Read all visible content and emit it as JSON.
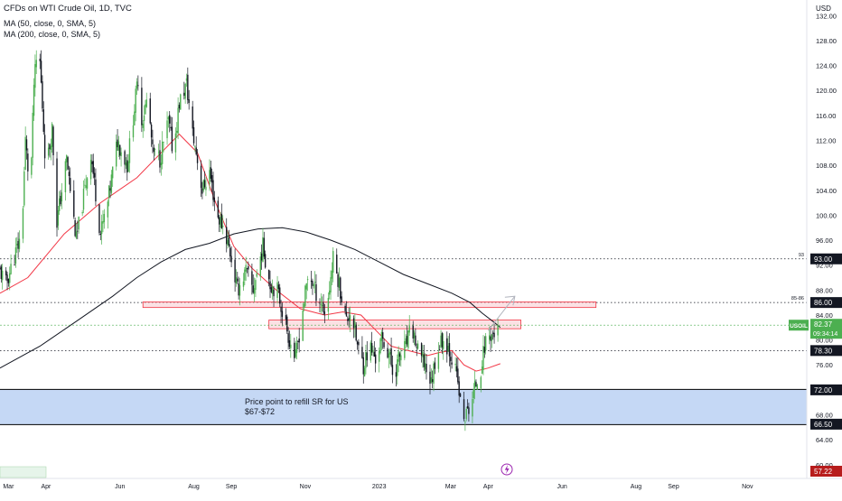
{
  "legend": {
    "symbol_line": "CFDs on WTI Crude Oil, 1D, TVC",
    "ma50_line": "MA (50, close, 0, SMA, 5)",
    "ma200_line": "MA (200, close, 0, SMA, 5)"
  },
  "colors": {
    "up": "#4caf50",
    "down": "#131722",
    "ma50": "#f23645",
    "ma200": "#131722",
    "support_band": "#c5d8f5",
    "resistance_zone": "#f7c9ce",
    "current_price_tag": "#4caf50",
    "low_price_tag": "#b71c1c"
  },
  "chart_data": {
    "type": "candlestick",
    "currency_label": "USD",
    "symbol": "USOIL",
    "y_axis": {
      "ticks": [
        60,
        64,
        68,
        72,
        76,
        80,
        84,
        88,
        92,
        96,
        100,
        104,
        108,
        112,
        116,
        120,
        124,
        128,
        132
      ],
      "range": [
        57.8,
        134.5
      ]
    },
    "x_axis": {
      "labels": [
        "Mar",
        "Apr",
        "Jun",
        "Aug",
        "Sep",
        "Nov",
        "2023",
        "Mar",
        "Apr",
        "Jun",
        "Aug",
        "Sep",
        "Nov"
      ],
      "range_days": [
        -313,
        353
      ]
    },
    "price_tags": [
      {
        "kind": "line",
        "value": "93.00"
      },
      {
        "kind": "line",
        "value": "86.00"
      },
      {
        "kind": "current",
        "symbol": "USOIL",
        "value": "82.37",
        "countdown": "09:34:14"
      },
      {
        "kind": "line",
        "value": "78.30"
      },
      {
        "kind": "line",
        "value": "72.00"
      },
      {
        "kind": "line",
        "value": "66.50"
      },
      {
        "kind": "low",
        "value": "57.22"
      }
    ],
    "horizontal_levels": [
      {
        "price": 93,
        "style": "dotted",
        "label": "93"
      },
      {
        "price": 86,
        "style": "dotted",
        "label": "85-86"
      },
      {
        "price": 78.3,
        "style": "dotted",
        "label": ""
      },
      {
        "price": 72,
        "style": "solid-bold",
        "label": ""
      },
      {
        "price": 66.5,
        "style": "solid-bold",
        "label": ""
      }
    ],
    "annotations": {
      "support_text_line1": "Price point to refill SR for US",
      "support_text_line2": "$67-$72",
      "support_zone": {
        "from": 66.5,
        "to": 72
      },
      "resistance_zone_wide": {
        "from": 85.2,
        "to": 86.1,
        "x_from_day": -195,
        "x_to_day": 179
      },
      "resistance_zone_short": {
        "from": 81.8,
        "to": 83.2,
        "x_from_day": -91,
        "x_to_day": 117
      },
      "projection_arrow": {
        "from_day": 90,
        "from_price": 81.5,
        "to_day": 112,
        "to_price": 87
      }
    },
    "waypoints": [
      [
        -313,
        91
      ],
      [
        -308,
        89
      ],
      [
        -300,
        94
      ],
      [
        -295,
        97
      ],
      [
        -292,
        112
      ],
      [
        -288,
        103
      ],
      [
        -285,
        121
      ],
      [
        -281,
        128
      ],
      [
        -275,
        107
      ],
      [
        -270,
        114
      ],
      [
        -266,
        99
      ],
      [
        -258,
        109
      ],
      [
        -250,
        96
      ],
      [
        -244,
        103
      ],
      [
        -238,
        110
      ],
      [
        -230,
        97
      ],
      [
        -224,
        102
      ],
      [
        -216,
        112
      ],
      [
        -208,
        108
      ],
      [
        -199,
        122
      ],
      [
        -196,
        115
      ],
      [
        -191,
        119
      ],
      [
        -187,
        110
      ],
      [
        -181,
        109
      ],
      [
        -174,
        115
      ],
      [
        -170,
        110
      ],
      [
        -165,
        118
      ],
      [
        -159,
        121
      ],
      [
        -154,
        113
      ],
      [
        -151,
        110
      ],
      [
        -146,
        104
      ],
      [
        -140,
        107
      ],
      [
        -134,
        100
      ],
      [
        -128,
        98
      ],
      [
        -123,
        94
      ],
      [
        -117,
        88
      ],
      [
        -110,
        91
      ],
      [
        -104,
        88
      ],
      [
        -96,
        95
      ],
      [
        -90,
        89
      ],
      [
        -84,
        88
      ],
      [
        -79,
        84
      ],
      [
        -74,
        80
      ],
      [
        -69,
        77
      ],
      [
        -63,
        85
      ],
      [
        -58,
        91
      ],
      [
        -53,
        88
      ],
      [
        -48,
        86
      ],
      [
        -44,
        84
      ],
      [
        -38,
        93
      ],
      [
        -33,
        89
      ],
      [
        -27,
        83
      ],
      [
        -23,
        85
      ],
      [
        -18,
        79
      ],
      [
        -13,
        76
      ],
      [
        -8,
        79
      ],
      [
        -3,
        77
      ],
      [
        2,
        80
      ],
      [
        8,
        78
      ],
      [
        12,
        74
      ],
      [
        16,
        77
      ],
      [
        22,
        79
      ],
      [
        27,
        82
      ],
      [
        32,
        78
      ],
      [
        38,
        76
      ],
      [
        43,
        73
      ],
      [
        47,
        78
      ],
      [
        52,
        80
      ],
      [
        57,
        79
      ],
      [
        62,
        76
      ],
      [
        65,
        73
      ],
      [
        69,
        66.8
      ],
      [
        72,
        68
      ],
      [
        76,
        70
      ],
      [
        80,
        73
      ],
      [
        84,
        75.5
      ],
      [
        88,
        80
      ],
      [
        92,
        81
      ],
      [
        96,
        80.5
      ],
      [
        99,
        82.37
      ]
    ],
    "ma50": [
      [
        -313,
        87.5
      ],
      [
        -290,
        90
      ],
      [
        -260,
        97
      ],
      [
        -230,
        102
      ],
      [
        -200,
        106
      ],
      [
        -180,
        110
      ],
      [
        -165,
        113
      ],
      [
        -150,
        110
      ],
      [
        -135,
        102
      ],
      [
        -120,
        95
      ],
      [
        -105,
        91.5
      ],
      [
        -85,
        88
      ],
      [
        -65,
        85
      ],
      [
        -45,
        84
      ],
      [
        -30,
        84.5
      ],
      [
        -15,
        84
      ],
      [
        0,
        81
      ],
      [
        10,
        79
      ],
      [
        20,
        78.5
      ],
      [
        30,
        78
      ],
      [
        40,
        77.5
      ],
      [
        50,
        78
      ],
      [
        60,
        78.3
      ],
      [
        70,
        76
      ],
      [
        80,
        75
      ],
      [
        90,
        75.5
      ],
      [
        100,
        76.2
      ]
    ],
    "ma200": [
      [
        -313,
        75.5
      ],
      [
        -280,
        79
      ],
      [
        -250,
        83
      ],
      [
        -220,
        87
      ],
      [
        -200,
        90
      ],
      [
        -180,
        92.5
      ],
      [
        -160,
        94.5
      ],
      [
        -140,
        95.5
      ],
      [
        -120,
        97
      ],
      [
        -100,
        97.8
      ],
      [
        -80,
        98
      ],
      [
        -60,
        97.3
      ],
      [
        -40,
        96
      ],
      [
        -20,
        94.5
      ],
      [
        0,
        92.5
      ],
      [
        20,
        90.5
      ],
      [
        40,
        89
      ],
      [
        60,
        87.5
      ],
      [
        75,
        86
      ],
      [
        85,
        84.3
      ],
      [
        95,
        82.8
      ],
      [
        100,
        82
      ]
    ]
  }
}
